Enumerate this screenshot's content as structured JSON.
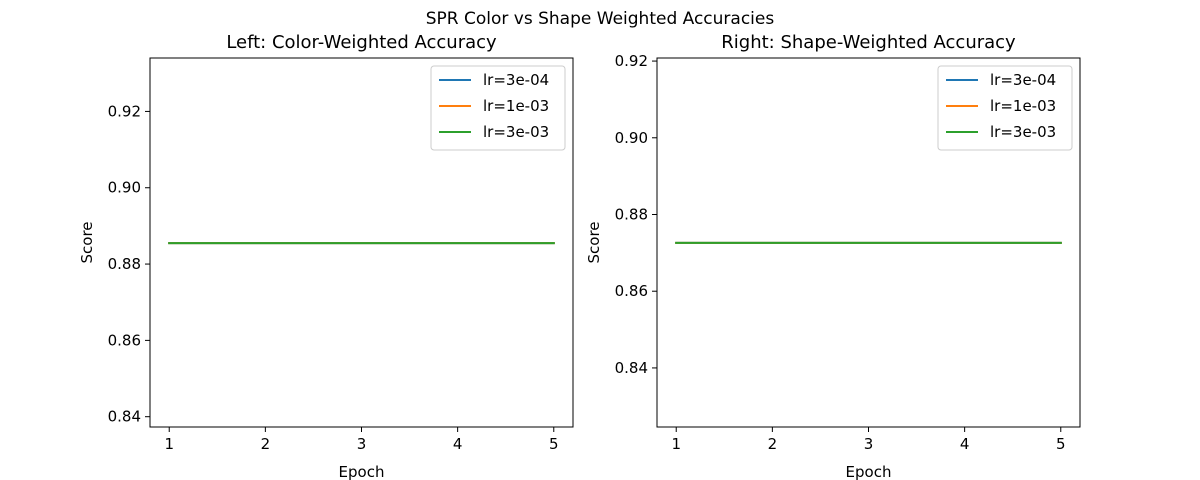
{
  "figure": {
    "suptitle": "SPR Color vs Shape Weighted Accuracies"
  },
  "chart_data": [
    {
      "type": "line",
      "title": "Left: Color-Weighted Accuracy",
      "xlabel": "Epoch",
      "ylabel": "Score",
      "x": [
        1,
        2,
        3,
        4,
        5
      ],
      "xticks": [
        1,
        2,
        3,
        4,
        5
      ],
      "yticks": [
        0.84,
        0.86,
        0.88,
        0.9,
        0.92
      ],
      "xlim": [
        0.8,
        5.2
      ],
      "ylim": [
        0.8373,
        0.934
      ],
      "grid": false,
      "legend": "top-right",
      "series": [
        {
          "name": "lr=3e-04",
          "color": "#1f77b4",
          "values": [
            0.8855,
            0.8855,
            0.8855,
            0.8855,
            0.8855
          ]
        },
        {
          "name": "lr=1e-03",
          "color": "#ff7f0e",
          "values": [
            0.8855,
            0.8855,
            0.8855,
            0.8855,
            0.8855
          ]
        },
        {
          "name": "lr=3e-03",
          "color": "#2ca02c",
          "values": [
            0.8855,
            0.8855,
            0.8855,
            0.8855,
            0.8855
          ]
        }
      ]
    },
    {
      "type": "line",
      "title": "Right: Shape-Weighted Accuracy",
      "xlabel": "Epoch",
      "ylabel": "Score",
      "x": [
        1,
        2,
        3,
        4,
        5
      ],
      "xticks": [
        1,
        2,
        3,
        4,
        5
      ],
      "yticks": [
        0.84,
        0.86,
        0.88,
        0.9,
        0.92
      ],
      "xlim": [
        0.8,
        5.2
      ],
      "ylim": [
        0.8246,
        0.9208
      ],
      "grid": false,
      "legend": "top-right",
      "series": [
        {
          "name": "lr=3e-04",
          "color": "#1f77b4",
          "values": [
            0.8726,
            0.8726,
            0.8726,
            0.8726,
            0.8726
          ]
        },
        {
          "name": "lr=1e-03",
          "color": "#ff7f0e",
          "values": [
            0.8726,
            0.8726,
            0.8726,
            0.8726,
            0.8726
          ]
        },
        {
          "name": "lr=3e-03",
          "color": "#2ca02c",
          "values": [
            0.8726,
            0.8726,
            0.8726,
            0.8726,
            0.8726
          ]
        }
      ]
    }
  ]
}
